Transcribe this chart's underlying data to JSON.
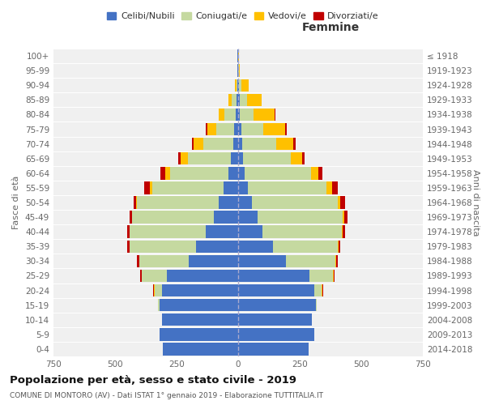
{
  "age_groups": [
    "0-4",
    "5-9",
    "10-14",
    "15-19",
    "20-24",
    "25-29",
    "30-34",
    "35-39",
    "40-44",
    "45-49",
    "50-54",
    "55-59",
    "60-64",
    "65-69",
    "70-74",
    "75-79",
    "80-84",
    "85-89",
    "90-94",
    "95-99",
    "100+"
  ],
  "birth_years": [
    "2014-2018",
    "2009-2013",
    "2004-2008",
    "1999-2003",
    "1994-1998",
    "1989-1993",
    "1984-1988",
    "1979-1983",
    "1974-1978",
    "1969-1973",
    "1964-1968",
    "1959-1963",
    "1954-1958",
    "1949-1953",
    "1944-1948",
    "1939-1943",
    "1934-1938",
    "1929-1933",
    "1924-1928",
    "1919-1923",
    "≤ 1918"
  ],
  "male_celibi": [
    305,
    320,
    310,
    320,
    310,
    290,
    200,
    170,
    130,
    100,
    80,
    60,
    40,
    30,
    20,
    15,
    10,
    5,
    3,
    2,
    2
  ],
  "male_coniugati": [
    0,
    0,
    0,
    5,
    30,
    100,
    200,
    270,
    310,
    330,
    330,
    290,
    235,
    175,
    120,
    75,
    45,
    20,
    5,
    0,
    0
  ],
  "male_vedovi": [
    0,
    0,
    0,
    0,
    2,
    2,
    2,
    2,
    2,
    2,
    5,
    10,
    20,
    30,
    40,
    35,
    25,
    15,
    5,
    1,
    0
  ],
  "male_divorziati": [
    0,
    0,
    0,
    0,
    2,
    5,
    8,
    8,
    10,
    8,
    10,
    20,
    20,
    10,
    8,
    5,
    0,
    0,
    0,
    0,
    0
  ],
  "female_celibi": [
    285,
    310,
    300,
    315,
    310,
    290,
    195,
    140,
    100,
    80,
    55,
    40,
    25,
    20,
    15,
    12,
    8,
    5,
    2,
    1,
    1
  ],
  "female_coniugati": [
    0,
    0,
    0,
    5,
    30,
    95,
    200,
    265,
    320,
    345,
    350,
    320,
    270,
    195,
    140,
    90,
    55,
    30,
    10,
    2,
    0
  ],
  "female_vedovi": [
    0,
    0,
    0,
    0,
    2,
    2,
    2,
    3,
    3,
    5,
    10,
    20,
    30,
    45,
    70,
    90,
    85,
    60,
    30,
    5,
    2
  ],
  "female_divorziati": [
    0,
    0,
    0,
    0,
    2,
    5,
    8,
    8,
    10,
    15,
    20,
    25,
    18,
    10,
    8,
    5,
    2,
    0,
    0,
    0,
    0
  ],
  "colors": {
    "celibi": "#4472c4",
    "coniugati": "#c5d9a0",
    "vedovi": "#ffc000",
    "divorziati": "#c00000"
  },
  "title": "Popolazione per età, sesso e stato civile - 2019",
  "subtitle": "COMUNE DI MONTORO (AV) - Dati ISTAT 1° gennaio 2019 - Elaborazione TUTTITALIA.IT",
  "xlabel_right": "Femmine",
  "ylabel_left": "Fasce di età",
  "ylabel_right": "Anni di nascita",
  "xlim": 750,
  "legend_labels": [
    "Celibi/Nubili",
    "Coniugati/e",
    "Vedovi/e",
    "Divorziati/e"
  ],
  "background_color": "#ffffff",
  "plot_bg_color": "#f0f0f0",
  "grid_color": "#ffffff"
}
